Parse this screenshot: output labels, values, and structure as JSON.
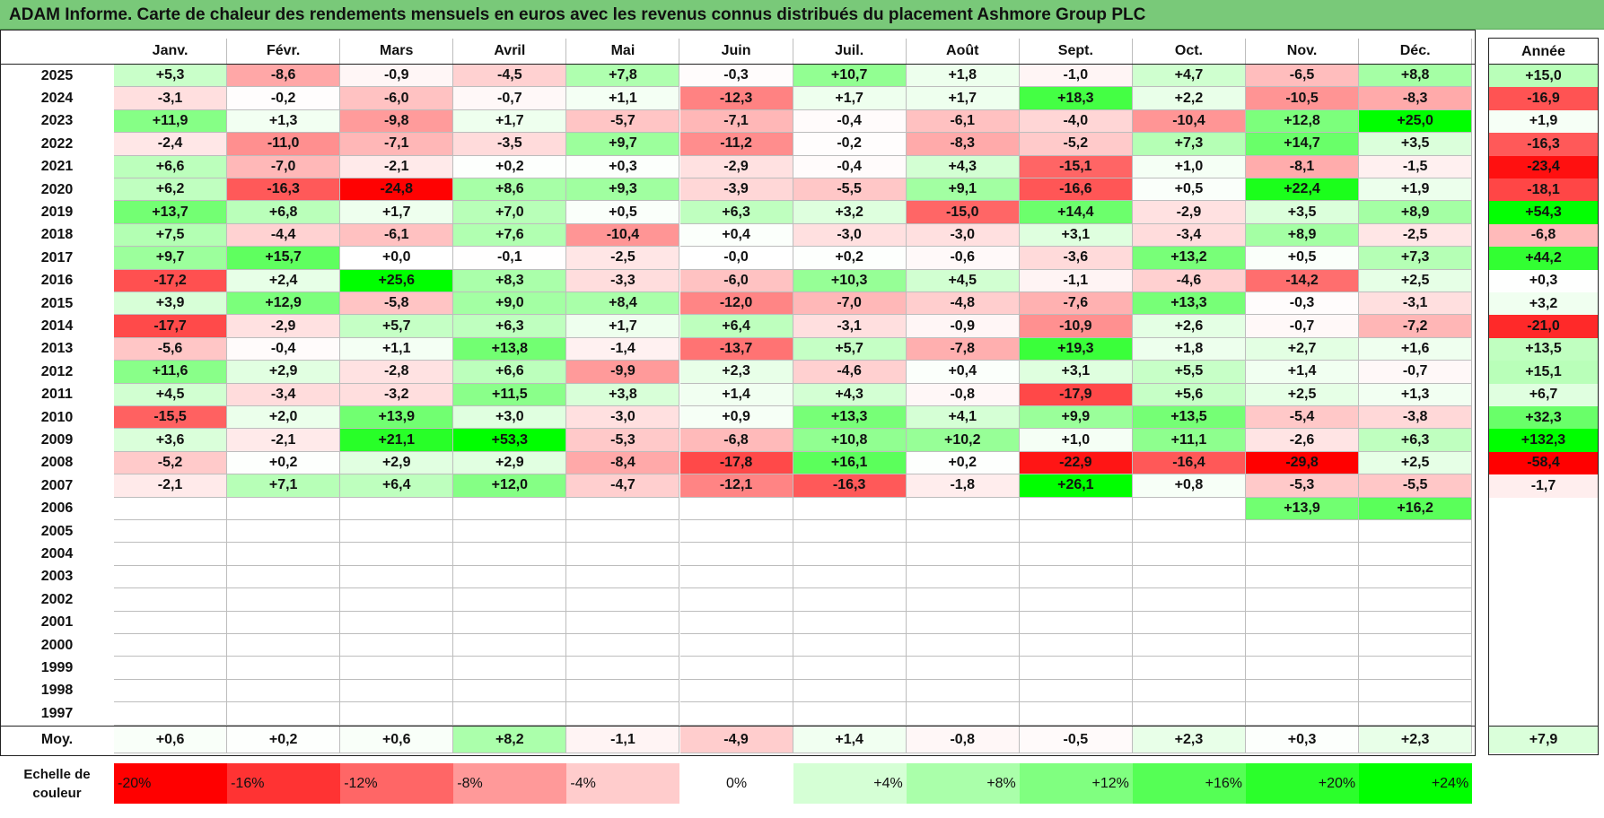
{
  "title": "ADAM Informe. Carte de chaleur des rendements mensuels en euros avec les revenus connus distribués du placement Ashmore Group PLC",
  "chart_data": {
    "type": "heatmap",
    "months": [
      "Janv.",
      "Févr.",
      "Mars",
      "Avril",
      "Mai",
      "Juin",
      "Juil.",
      "Août",
      "Sept.",
      "Oct.",
      "Nov.",
      "Déc."
    ],
    "year_column_label": "Année",
    "years": [
      "2025",
      "2024",
      "2023",
      "2022",
      "2021",
      "2020",
      "2019",
      "2018",
      "2017",
      "2016",
      "2015",
      "2014",
      "2013",
      "2012",
      "2011",
      "2010",
      "2009",
      "2008",
      "2007",
      "2006",
      "2005",
      "2004",
      "2003",
      "2002",
      "2001",
      "2000",
      "1999",
      "1998",
      "1997"
    ],
    "values": [
      [
        "+5,3",
        "-8,6",
        "-0,9",
        "-4,5",
        "+7,8",
        "-0,3",
        "+10,7",
        "+1,8",
        "-1,0",
        "+4,7",
        "-6,5",
        "+8,8"
      ],
      [
        "-3,1",
        "-0,2",
        "-6,0",
        "-0,7",
        "+1,1",
        "-12,3",
        "+1,7",
        "+1,7",
        "+18,3",
        "+2,2",
        "-10,5",
        "-8,3"
      ],
      [
        "+11,9",
        "+1,3",
        "-9,8",
        "+1,7",
        "-5,7",
        "-7,1",
        "-0,4",
        "-6,1",
        "-4,0",
        "-10,4",
        "+12,8",
        "+25,0"
      ],
      [
        "-2,4",
        "-11,0",
        "-7,1",
        "-3,5",
        "+9,7",
        "-11,2",
        "-0,2",
        "-8,3",
        "-5,2",
        "+7,3",
        "+14,7",
        "+3,5"
      ],
      [
        "+6,6",
        "-7,0",
        "-2,1",
        "+0,2",
        "+0,3",
        "-2,9",
        "-0,4",
        "+4,3",
        "-15,1",
        "+1,0",
        "-8,1",
        "-1,5"
      ],
      [
        "+6,2",
        "-16,3",
        "-24,8",
        "+8,6",
        "+9,3",
        "-3,9",
        "-5,5",
        "+9,1",
        "-16,6",
        "+0,5",
        "+22,4",
        "+1,9"
      ],
      [
        "+13,7",
        "+6,8",
        "+1,7",
        "+7,0",
        "+0,5",
        "+6,3",
        "+3,2",
        "-15,0",
        "+14,4",
        "-2,9",
        "+3,5",
        "+8,9"
      ],
      [
        "+7,5",
        "-4,4",
        "-6,1",
        "+7,6",
        "-10,4",
        "+0,4",
        "-3,0",
        "-3,0",
        "+3,1",
        "-3,4",
        "+8,9",
        "-2,5"
      ],
      [
        "+9,7",
        "+15,7",
        "+0,0",
        "-0,1",
        "-2,5",
        "-0,0",
        "+0,2",
        "-0,6",
        "-3,6",
        "+13,2",
        "+0,5",
        "+7,3"
      ],
      [
        "-17,2",
        "+2,4",
        "+25,6",
        "+8,3",
        "-3,3",
        "-6,0",
        "+10,3",
        "+4,5",
        "-1,1",
        "-4,6",
        "-14,2",
        "+2,5"
      ],
      [
        "+3,9",
        "+12,9",
        "-5,8",
        "+9,0",
        "+8,4",
        "-12,0",
        "-7,0",
        "-4,8",
        "-7,6",
        "+13,3",
        "-0,3",
        "-3,1"
      ],
      [
        "-17,7",
        "-2,9",
        "+5,7",
        "+6,3",
        "+1,7",
        "+6,4",
        "-3,1",
        "-0,9",
        "-10,9",
        "+2,6",
        "-0,7",
        "-7,2"
      ],
      [
        "-5,6",
        "-0,4",
        "+1,1",
        "+13,8",
        "-1,4",
        "-13,7",
        "+5,7",
        "-7,8",
        "+19,3",
        "+1,8",
        "+2,7",
        "+1,6"
      ],
      [
        "+11,6",
        "+2,9",
        "-2,8",
        "+6,6",
        "-9,9",
        "+2,3",
        "-4,6",
        "+0,4",
        "+3,1",
        "+5,5",
        "+1,4",
        "-0,7"
      ],
      [
        "+4,5",
        "-3,4",
        "-3,2",
        "+11,5",
        "+3,8",
        "+1,4",
        "+4,3",
        "-0,8",
        "-17,9",
        "+5,6",
        "+2,5",
        "+1,3"
      ],
      [
        "-15,5",
        "+2,0",
        "+13,9",
        "+3,0",
        "-3,0",
        "+0,9",
        "+13,3",
        "+4,1",
        "+9,9",
        "+13,5",
        "-5,4",
        "-3,8"
      ],
      [
        "+3,6",
        "-2,1",
        "+21,1",
        "+53,3",
        "-5,3",
        "-6,8",
        "+10,8",
        "+10,2",
        "+1,0",
        "+11,1",
        "-2,6",
        "+6,3"
      ],
      [
        "-5,2",
        "+0,2",
        "+2,9",
        "+2,9",
        "-8,4",
        "-17,8",
        "+16,1",
        "+0,2",
        "-22,9",
        "-16,4",
        "-29,8",
        "+2,5"
      ],
      [
        "-2,1",
        "+7,1",
        "+6,4",
        "+12,0",
        "-4,7",
        "-12,1",
        "-16,3",
        "-1,8",
        "+26,1",
        "+0,8",
        "-5,3",
        "-5,5"
      ],
      [
        "",
        "",
        "",
        "",
        "",
        "",
        "",
        "",
        "",
        "",
        "+13,9",
        "+16,2"
      ],
      [
        "",
        "",
        "",
        "",
        "",
        "",
        "",
        "",
        "",
        "",
        "",
        ""
      ],
      [
        "",
        "",
        "",
        "",
        "",
        "",
        "",
        "",
        "",
        "",
        "",
        ""
      ],
      [
        "",
        "",
        "",
        "",
        "",
        "",
        "",
        "",
        "",
        "",
        "",
        ""
      ],
      [
        "",
        "",
        "",
        "",
        "",
        "",
        "",
        "",
        "",
        "",
        "",
        ""
      ],
      [
        "",
        "",
        "",
        "",
        "",
        "",
        "",
        "",
        "",
        "",
        "",
        ""
      ],
      [
        "",
        "",
        "",
        "",
        "",
        "",
        "",
        "",
        "",
        "",
        "",
        ""
      ],
      [
        "",
        "",
        "",
        "",
        "",
        "",
        "",
        "",
        "",
        "",
        "",
        ""
      ],
      [
        "",
        "",
        "",
        "",
        "",
        "",
        "",
        "",
        "",
        "",
        "",
        ""
      ],
      [
        "",
        "",
        "",
        "",
        "",
        "",
        "",
        "",
        "",
        "",
        "",
        ""
      ]
    ],
    "annual": [
      "+15,0",
      "-16,9",
      "+1,9",
      "-16,3",
      "-23,4",
      "-18,1",
      "+54,3",
      "-6,8",
      "+44,2",
      "+0,3",
      "+3,2",
      "-21,0",
      "+13,5",
      "+15,1",
      "+6,7",
      "+32,3",
      "+132,3",
      "-58,4",
      "-1,7",
      "",
      "",
      "",
      "",
      "",
      "",
      "",
      "",
      "",
      ""
    ],
    "average_label": "Moy.",
    "averages": [
      "+0,6",
      "+0,2",
      "+0,6",
      "+8,2",
      "-1,1",
      "-4,9",
      "+1,4",
      "-0,8",
      "-0,5",
      "+2,3",
      "+0,3",
      "+2,3"
    ],
    "average_annual": "+7,9",
    "scale_label_line1": "Echelle de",
    "scale_label_line2": "couleur",
    "scale_steps": [
      "-20%",
      "-16%",
      "-12%",
      "-8%",
      "-4%",
      "0%",
      "+4%",
      "+8%",
      "+12%",
      "+16%",
      "+20%",
      "+24%"
    ],
    "colors": {
      "title_bar": "#79c979",
      "neg_max": "#ff0000",
      "neutral": "#ffffff",
      "pos_max": "#00ff00"
    }
  }
}
